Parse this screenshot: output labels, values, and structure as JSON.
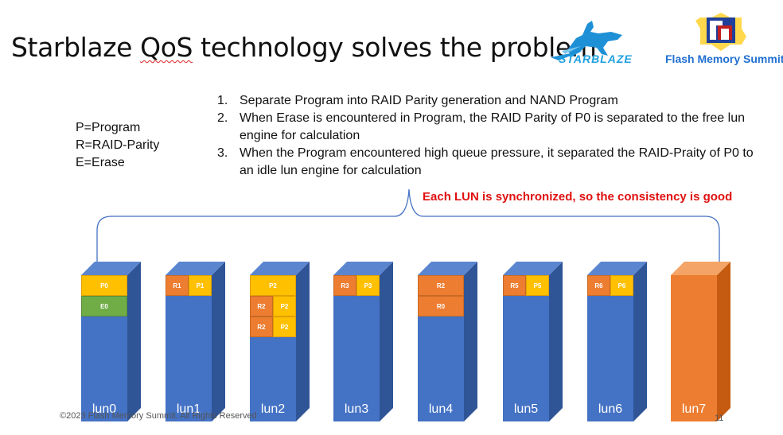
{
  "title": {
    "part1": "Starblaze ",
    "part2": "QoS",
    "part3": " technology solves the problem"
  },
  "logos": {
    "starblaze": "STARBLAZE",
    "fms": "Flash Memory Summit"
  },
  "legend": [
    "P=Program",
    "R=RAID-Parity",
    "E=Erase"
  ],
  "steps": [
    {
      "num": "1.",
      "text": "Separate Program into RAID Parity generation and NAND Program"
    },
    {
      "num": "2.",
      "text": "When Erase is encountered in Program, the RAID Parity of P0 is separated to the free lun engine for calculation"
    },
    {
      "num": "3.",
      "text": "When the Program encountered high queue pressure, it separated the RAID-Praity of P0 to an idle lun engine for calculation"
    }
  ],
  "highlight": "Each LUN is synchronized, so the consistency is good",
  "luns": [
    {
      "name": "lun0",
      "cells": [
        [
          "P0"
        ],
        [
          "E0"
        ]
      ]
    },
    {
      "name": "lun1",
      "cells": [
        [
          "R1",
          "P1"
        ]
      ]
    },
    {
      "name": "lun2",
      "cells": [
        [
          "P2"
        ],
        [
          "R2",
          "P2"
        ],
        [
          "R2",
          "P2"
        ]
      ]
    },
    {
      "name": "lun3",
      "cells": [
        [
          "R3",
          "P3"
        ]
      ]
    },
    {
      "name": "lun4",
      "cells": [
        [
          "R2"
        ],
        [
          "R0"
        ]
      ]
    },
    {
      "name": "lun5",
      "cells": [
        [
          "R5",
          "P5"
        ]
      ]
    },
    {
      "name": "lun6",
      "cells": [
        [
          "R6",
          "P6"
        ]
      ]
    },
    {
      "name": "lun7",
      "cells": []
    }
  ],
  "colors": {
    "lun_front": "#4472c4",
    "lun_side": "#2f5597",
    "lun7_front": "#ed7d31",
    "lun7_side": "#c55a11",
    "program": "#ffc000",
    "raid": "#ed7d31",
    "erase": "#70ad47",
    "highlight": "#e01010"
  },
  "footer": "©2023 Flash Memory Summit. All Rights Reserved",
  "page_number": "11"
}
